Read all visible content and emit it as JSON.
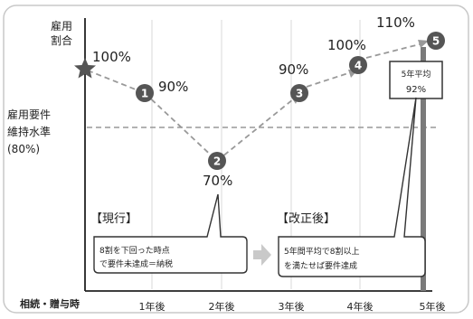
{
  "y_axis_label": [
    "雇用",
    "割合"
  ],
  "threshold_label": [
    "雇用要件",
    "維持水準",
    "(80%)"
  ],
  "x_labels": [
    "相続・贈与時",
    "1年後",
    "2年後",
    "3年後",
    "4年後",
    "5年後"
  ],
  "markers": [
    {
      "id": "start",
      "label": "",
      "value": "100%"
    },
    {
      "id": "1",
      "label": "1",
      "value": "90%"
    },
    {
      "id": "2",
      "label": "2",
      "value": "70%"
    },
    {
      "id": "3",
      "label": "3",
      "value": "90%"
    },
    {
      "id": "4",
      "label": "4",
      "value": "100%"
    },
    {
      "id": "5",
      "label": "5",
      "value": "110%"
    }
  ],
  "avg_box": {
    "line1": "5年平均",
    "line2": "92%"
  },
  "current": {
    "title": "【現行】",
    "line1": "8割を下回った時点",
    "line2": "で要件未達成＝納税"
  },
  "revised": {
    "title": "【改正後】",
    "line1": "5年間平均で8割以上",
    "line2": "を満たせば要件達成"
  },
  "colors": {
    "marker": "#555555",
    "dashed": "#999999",
    "bar": "#7a7a7a",
    "arrow": "#cccccc"
  }
}
